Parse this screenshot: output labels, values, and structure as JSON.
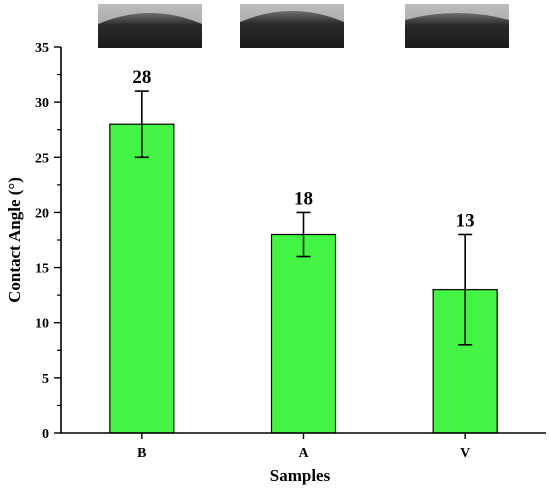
{
  "chart_data": {
    "type": "bar",
    "categories": [
      "B",
      "A",
      "V"
    ],
    "values": [
      28,
      18,
      13
    ],
    "errors": [
      3,
      2,
      5
    ],
    "data_labels": [
      "28",
      "18",
      "13"
    ],
    "xlabel": "Samples",
    "ylabel": "Contact Angle (°)",
    "ylim": [
      0,
      35
    ],
    "yticks": [
      "0",
      "5",
      "10",
      "15",
      "20",
      "25",
      "30",
      "35"
    ],
    "bar_color": "#44f444",
    "grid": false,
    "insets": [
      "water droplet photo B",
      "water droplet photo A",
      "water droplet photo V"
    ]
  }
}
